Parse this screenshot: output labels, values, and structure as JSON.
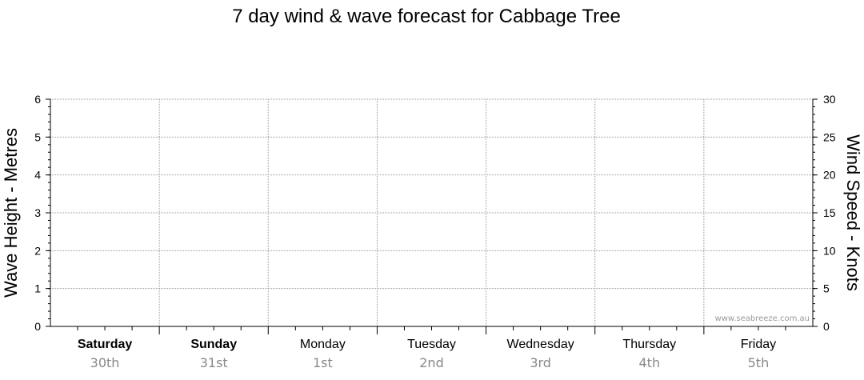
{
  "chart_data": {
    "type": "line",
    "title": "7 day wind & wave forecast for Cabbage Tree",
    "ylabel_left": "Wave Height - Metres",
    "ylabel_right": "Wind Speed - Knots",
    "ylim_left": [
      0,
      6
    ],
    "ylim_right": [
      0,
      30
    ],
    "yticks_left": [
      "0",
      "1",
      "2",
      "3",
      "4",
      "5",
      "6"
    ],
    "yticks_right": [
      "0",
      "5",
      "10",
      "15",
      "20",
      "25",
      "30"
    ],
    "grid": true,
    "days": [
      {
        "name": "Saturday",
        "date": "30th",
        "bold": true
      },
      {
        "name": "Sunday",
        "date": "31st",
        "bold": true
      },
      {
        "name": "Monday",
        "date": "1st",
        "bold": false
      },
      {
        "name": "Tuesday",
        "date": "2nd",
        "bold": false
      },
      {
        "name": "Wednesday",
        "date": "3rd",
        "bold": false
      },
      {
        "name": "Thursday",
        "date": "4th",
        "bold": false
      },
      {
        "name": "Friday",
        "date": "5th",
        "bold": false
      }
    ],
    "series": [],
    "watermark": "www.seabreeze.com.au"
  }
}
